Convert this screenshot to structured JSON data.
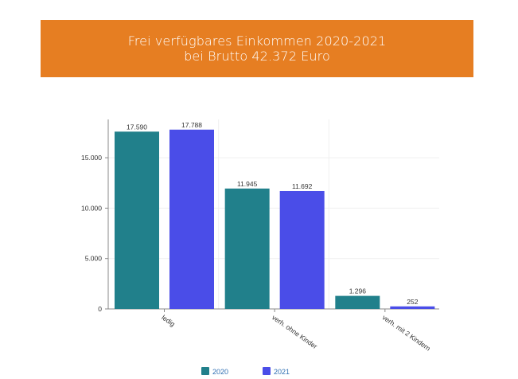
{
  "header": {
    "title_line1": "Frei verfügbares Einkommen 2020-2021",
    "title_line2": "bei Brutto 42.372 Euro",
    "background": "#e67e22"
  },
  "chart_data": {
    "type": "bar",
    "title": "Frei verfügbares Einkommen 2020-2021 bei Brutto 42.372 Euro",
    "xlabel": "",
    "ylabel": "",
    "categories": [
      "ledig",
      "verh. ohne Kinder",
      "verh. mit 2 Kindern"
    ],
    "series": [
      {
        "name": "2020",
        "color": "#21808b",
        "values": [
          17590,
          11945,
          1296
        ],
        "labels": [
          "17.590",
          "11.945",
          "1.296"
        ]
      },
      {
        "name": "2021",
        "color": "#4a4de8",
        "values": [
          17788,
          11692,
          252
        ],
        "labels": [
          "17.788",
          "11.692",
          "252"
        ]
      }
    ],
    "ylim": [
      0,
      18800
    ],
    "yticks": [
      0,
      5000,
      10000,
      15000
    ],
    "ytick_labels": [
      "0",
      "5.000",
      "10.000",
      "15.000"
    ],
    "grid": true,
    "legend": "bottom"
  }
}
